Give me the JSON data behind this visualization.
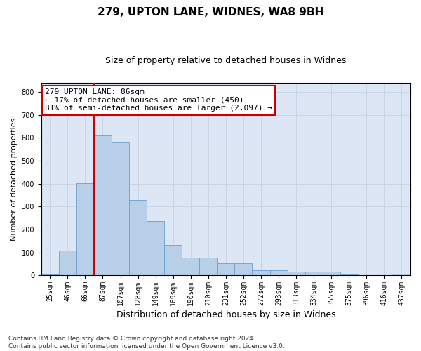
{
  "title1": "279, UPTON LANE, WIDNES, WA8 9BH",
  "title2": "Size of property relative to detached houses in Widnes",
  "xlabel": "Distribution of detached houses by size in Widnes",
  "ylabel": "Number of detached properties",
  "categories": [
    "25sqm",
    "46sqm",
    "66sqm",
    "87sqm",
    "107sqm",
    "128sqm",
    "149sqm",
    "169sqm",
    "190sqm",
    "210sqm",
    "231sqm",
    "252sqm",
    "272sqm",
    "293sqm",
    "313sqm",
    "334sqm",
    "355sqm",
    "375sqm",
    "396sqm",
    "416sqm",
    "437sqm"
  ],
  "values": [
    5,
    108,
    403,
    610,
    583,
    327,
    235,
    133,
    78,
    78,
    53,
    53,
    22,
    22,
    15,
    15,
    15,
    5,
    0,
    0,
    8
  ],
  "bar_color": "#b8cfe8",
  "bar_edge_color": "#6a9fd0",
  "annotation_line1": "279 UPTON LANE: 86sqm",
  "annotation_line2": "← 17% of detached houses are smaller (450)",
  "annotation_line3": "81% of semi-detached houses are larger (2,097) →",
  "annotation_box_color": "#ffffff",
  "annotation_box_edge": "#cc0000",
  "grid_color": "#c8d4e8",
  "background_color": "#dce6f5",
  "ylim": [
    0,
    840
  ],
  "yticks": [
    0,
    100,
    200,
    300,
    400,
    500,
    600,
    700,
    800
  ],
  "red_line_x": 2.5,
  "footnote_line1": "Contains HM Land Registry data © Crown copyright and database right 2024.",
  "footnote_line2": "Contains public sector information licensed under the Open Government Licence v3.0.",
  "title1_fontsize": 11,
  "title2_fontsize": 9,
  "xlabel_fontsize": 9,
  "ylabel_fontsize": 8,
  "tick_fontsize": 7,
  "annot_fontsize": 8,
  "footnote_fontsize": 6.5
}
